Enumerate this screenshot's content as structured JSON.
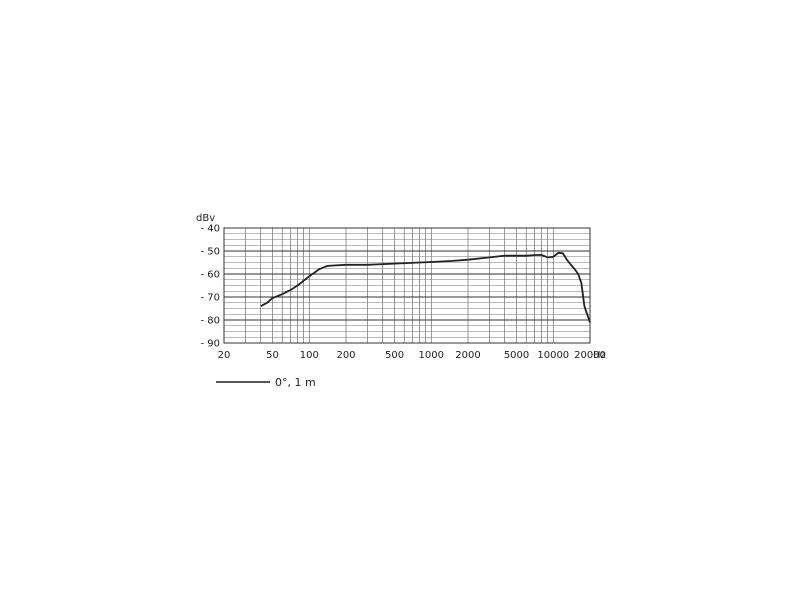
{
  "chart_data": {
    "type": "line",
    "title": "",
    "xlabel": "Hz",
    "ylabel": "dBv",
    "x_scale": "log",
    "xlim": [
      20,
      20000
    ],
    "ylim": [
      -90,
      -40
    ],
    "x_ticks": [
      20,
      50,
      100,
      200,
      500,
      1000,
      2000,
      5000,
      10000,
      20000
    ],
    "x_tick_labels": [
      "20",
      "50",
      "100",
      "200",
      "500",
      "1000",
      "2000",
      "5000",
      "10000",
      "20000"
    ],
    "y_ticks": [
      -40,
      -50,
      -60,
      -70,
      -80,
      -90
    ],
    "y_tick_labels": [
      "- 40",
      "- 50",
      "- 60",
      "- 70",
      "- 80",
      "- 90"
    ],
    "grid": true,
    "legend_position": "bottom-left",
    "series": [
      {
        "name": "0°, 1 m",
        "color": "#222222",
        "x": [
          40,
          45,
          50,
          60,
          70,
          80,
          100,
          120,
          140,
          200,
          300,
          500,
          800,
          1000,
          1500,
          2000,
          3000,
          4000,
          5000,
          6000,
          7000,
          8000,
          9000,
          10000,
          11000,
          12000,
          13000,
          15000,
          16000,
          17000,
          18000,
          20000
        ],
        "y": [
          -74,
          -72.5,
          -70.5,
          -68.8,
          -67,
          -65,
          -61,
          -58,
          -56.5,
          -56,
          -56,
          -55.5,
          -55,
          -54.8,
          -54.3,
          -53.8,
          -52.8,
          -52,
          -52,
          -52,
          -51.8,
          -51.7,
          -52.8,
          -52.5,
          -50.8,
          -51,
          -54,
          -58,
          -60,
          -64,
          -74,
          -81
        ]
      }
    ]
  }
}
